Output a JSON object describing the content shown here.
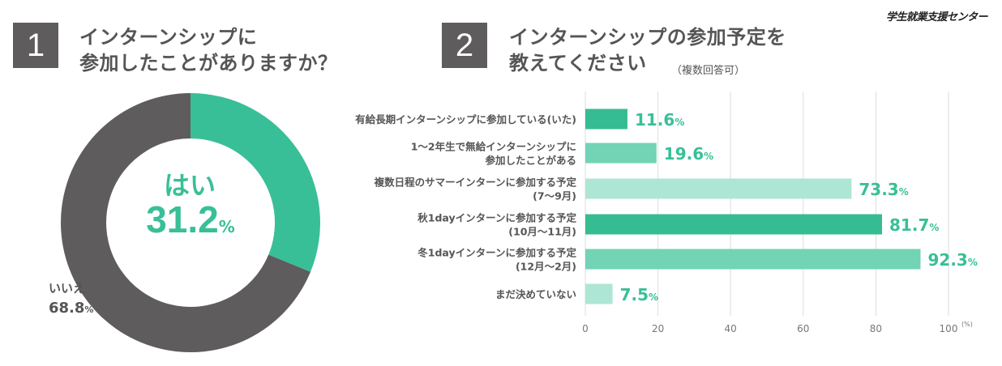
{
  "source_label": "学生就業支援センター",
  "question1": {
    "number": "1",
    "title_line1": "インターンシップに",
    "title_line2": "参加したことがありますか？"
  },
  "question2": {
    "number": "2",
    "title_line1": "インターンシップの参加予定を",
    "title_line2": "教えてください",
    "note": "（複数回答可）"
  },
  "donut": {
    "yes_label": "はい",
    "yes_value": "31.2",
    "no_label": "いいえ",
    "no_value": "68.8",
    "unit": "%"
  },
  "colors": {
    "yes": "#39bf98",
    "no": "#5e5c5c",
    "bar_dark": "#36bc92",
    "bar_mid": "#72d3b5",
    "bar_light": "#ade6d4",
    "grid": "#dddddd",
    "label": "#555555",
    "value": "#39bf98"
  },
  "chart_data": [
    {
      "type": "pie",
      "title": "インターンシップに参加したことがありますか？",
      "labels": [
        "はい",
        "いいえ"
      ],
      "values": [
        31.2,
        68.8
      ],
      "unit": "%"
    },
    {
      "type": "bar",
      "orientation": "horizontal",
      "title": "インターンシップの参加予定を教えてください",
      "categories": [
        [
          "有給長期インターンシップに参加している(いた)"
        ],
        [
          "1〜2年生で無給インターンシップに",
          "参加したことがある"
        ],
        [
          "複数日程のサマーインターンに参加する予定",
          "(7〜9月)"
        ],
        [
          "秋1dayインターンに参加する予定",
          "(10月〜11月)"
        ],
        [
          "冬1dayインターンに参加する予定",
          "(12月〜2月)"
        ],
        [
          "まだ決めていない"
        ]
      ],
      "values": [
        11.6,
        19.6,
        73.3,
        81.7,
        92.3,
        7.5
      ],
      "value_labels": [
        "11.6",
        "19.6",
        "73.3",
        "81.7",
        "92.3",
        "7.5"
      ],
      "bar_shades": [
        "dark",
        "mid",
        "light",
        "dark",
        "mid",
        "light"
      ],
      "xlim": [
        0,
        100
      ],
      "xticks": [
        "0",
        "20",
        "40",
        "60",
        "80",
        "100"
      ],
      "unit_label": "(%)",
      "value_unit": "%",
      "grid": true
    }
  ]
}
